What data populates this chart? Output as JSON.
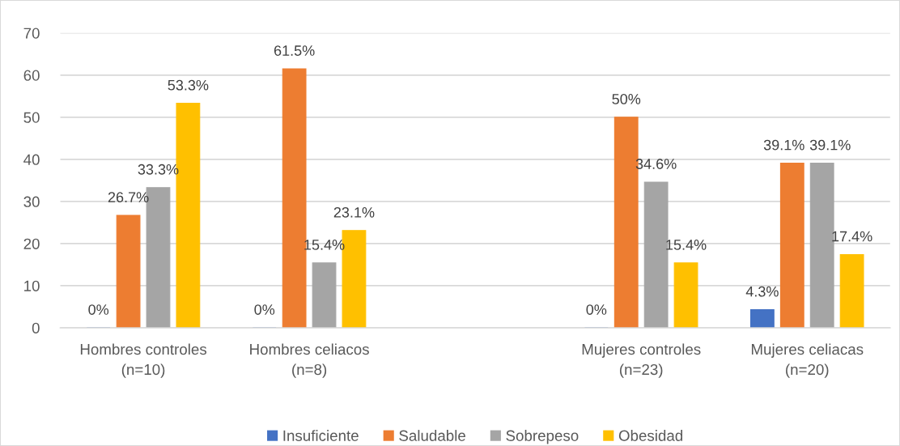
{
  "chart_data": {
    "type": "bar",
    "categories": [
      "Hombres controles\n(n=10)",
      "Hombres celiacos\n(n=8)",
      null,
      "Mujeres controles\n(n=23)",
      "Mujeres celiacas\n(n=20)"
    ],
    "series": [
      {
        "name": "Insuficiente",
        "color": "#4472c4",
        "values": [
          0,
          0,
          null,
          0,
          4.3
        ],
        "value_labels": [
          "0%",
          "0%",
          null,
          "0%",
          "4.3%"
        ]
      },
      {
        "name": "Saludable",
        "color": "#ed7d31",
        "values": [
          26.7,
          61.5,
          null,
          50,
          39.1
        ],
        "value_labels": [
          "26.7%",
          "61.5%",
          null,
          "50%",
          "39.1%"
        ]
      },
      {
        "name": "Sobrepeso",
        "color": "#a5a5a5",
        "values": [
          33.3,
          15.4,
          null,
          34.6,
          39.1
        ],
        "value_labels": [
          "33.3%",
          "15.4%",
          null,
          "34.6%",
          "39.1%"
        ]
      },
      {
        "name": "Obesidad",
        "color": "#ffc000",
        "values": [
          53.3,
          23.1,
          null,
          15.4,
          17.4
        ],
        "value_labels": [
          "53.3%",
          "23.1%",
          null,
          "15.4%",
          "17.4%"
        ]
      }
    ],
    "ylim": [
      0,
      70
    ],
    "yticks": [
      0,
      10,
      20,
      30,
      40,
      50,
      60,
      70
    ],
    "grid": "y",
    "legend": "bottom"
  }
}
